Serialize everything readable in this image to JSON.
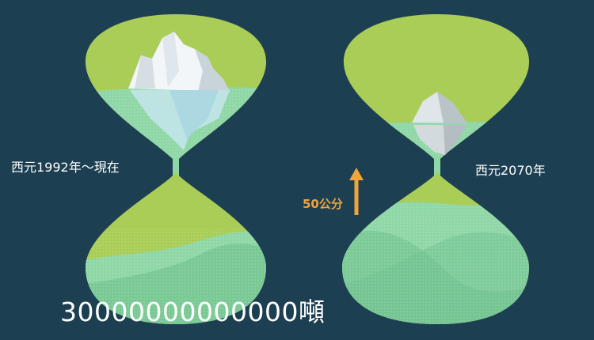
{
  "left_panel": {
    "period_label": "西元1992年～現在",
    "mass_label": "30000000000000噸"
  },
  "right_panel": {
    "period_label": "西元2070年",
    "sea_level_rise_label": "50公分"
  },
  "colors": {
    "background": "#1d3f52",
    "upper_glass": "#a9cd57",
    "water": "#8fd7a6",
    "water_deep": "#6dbf8b",
    "arrow": "#f0a43a",
    "ice": "#dfe9ee"
  },
  "icons": [
    "iceberg-large",
    "iceberg-small",
    "hourglass-left",
    "hourglass-right",
    "arrow-up"
  ]
}
